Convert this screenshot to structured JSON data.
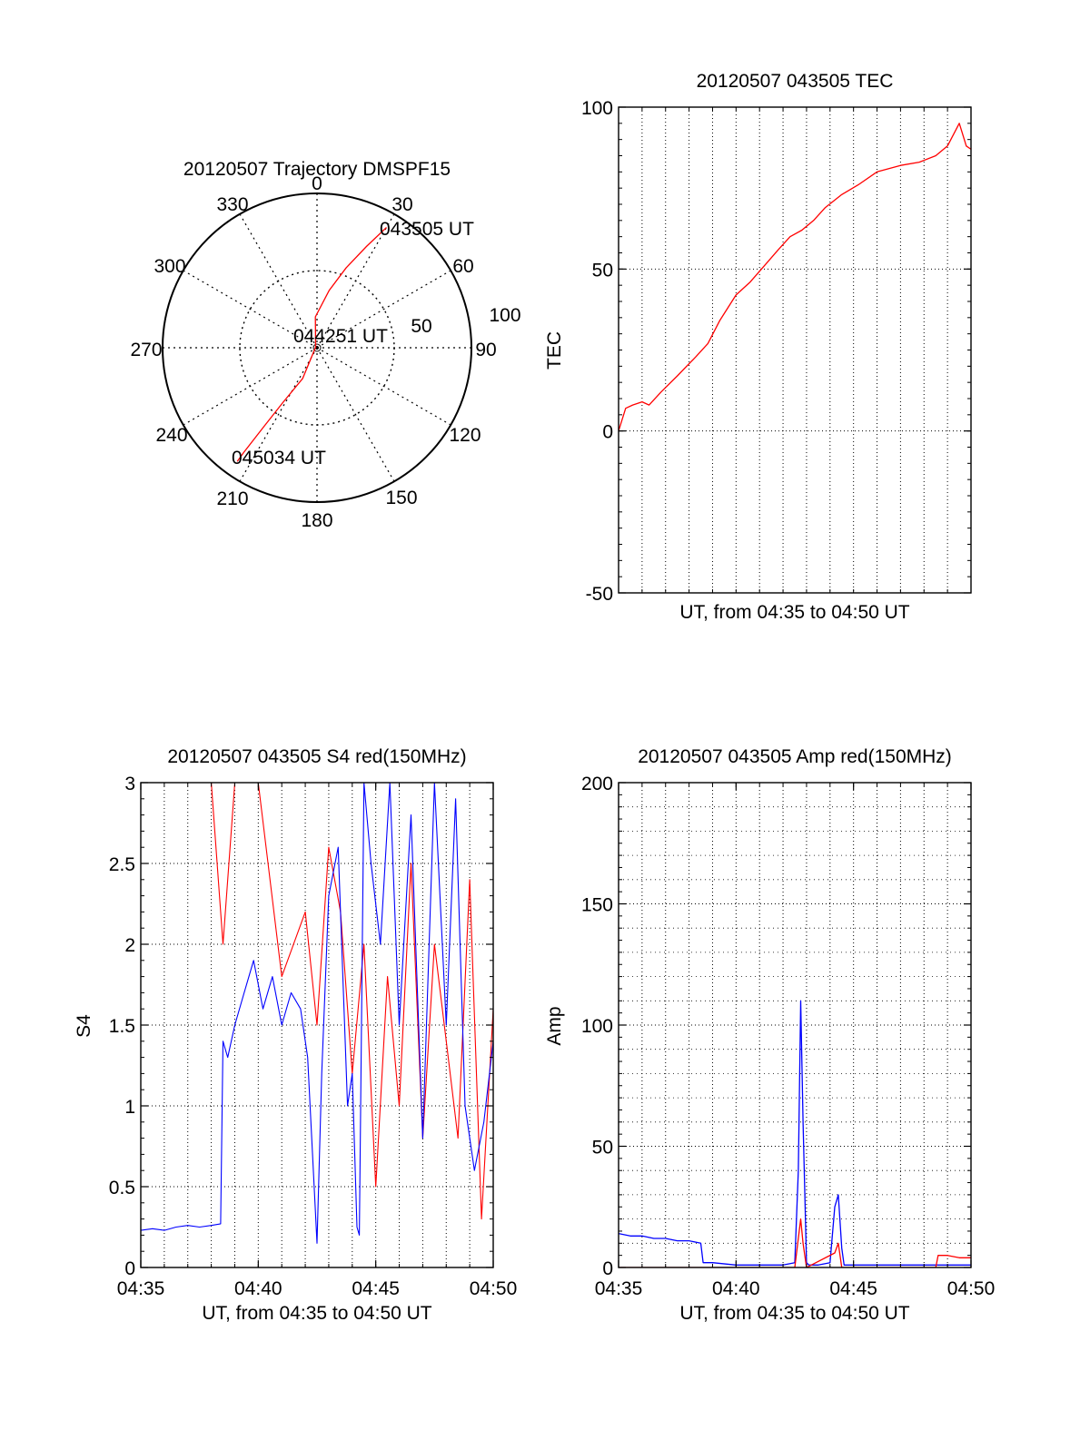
{
  "chart_data": [
    {
      "type": "polar",
      "title": "20120507 Trajectory DMSPF15",
      "azimuth_ticks": [
        "0",
        "30",
        "60",
        "90",
        "120",
        "150",
        "180",
        "210",
        "240",
        "270",
        "300",
        "330"
      ],
      "radial_ticks": [
        "50",
        "100"
      ],
      "radial_max": 100,
      "grid": true,
      "series": [
        {
          "color": "#ff0000",
          "points": [
            {
              "az": 30,
              "r": 90
            },
            {
              "az": 26,
              "r": 73
            },
            {
              "az": 20,
              "r": 55
            },
            {
              "az": 12,
              "r": 38
            },
            {
              "az": -3,
              "r": 20
            },
            {
              "az": -62,
              "r": 1
            },
            {
              "az": 205,
              "r": 22
            },
            {
              "az": 212,
              "r": 42
            },
            {
              "az": 214,
              "r": 62
            },
            {
              "az": 215,
              "r": 83
            },
            {
              "az": 215,
              "r": 90
            }
          ]
        }
      ],
      "labels": [
        {
          "text": "043505 UT",
          "az": 30,
          "r": 90
        },
        {
          "text": "044251 UT",
          "az": 0,
          "r": 1
        },
        {
          "text": "045034 UT",
          "az": 215,
          "r": 90
        }
      ]
    },
    {
      "type": "line",
      "title": "20120507 043505 TEC",
      "xlabel": "UT, from 04:35 to 04:50 UT",
      "ylabel": "TEC",
      "xlim": [
        0,
        15
      ],
      "ylim": [
        -50,
        100
      ],
      "yticks": [
        "-50",
        "0",
        "50",
        "100"
      ],
      "grid": true,
      "series": [
        {
          "color": "#ff0000",
          "x": [
            0.0,
            0.3,
            0.6,
            1.0,
            1.3,
            1.8,
            2.5,
            3.3,
            3.8,
            4.3,
            5.0,
            5.6,
            6.2,
            6.8,
            7.3,
            7.8,
            8.3,
            8.8,
            9.5,
            10.2,
            11.0,
            12.0,
            12.8,
            13.5,
            14.0,
            14.5,
            14.8,
            15.0
          ],
          "values": [
            0,
            7,
            8,
            9,
            8,
            12,
            17,
            23,
            27,
            34,
            42,
            46,
            51,
            56,
            60,
            62,
            65,
            69,
            73,
            76,
            80,
            82,
            83,
            85,
            88,
            95,
            88,
            87
          ]
        }
      ]
    },
    {
      "type": "line",
      "title": "20120507 043505 S4 red(150MHz)",
      "xlabel": "UT, from 04:35 to 04:50 UT",
      "ylabel": "S4",
      "xlim": [
        0,
        15
      ],
      "ylim": [
        0,
        3
      ],
      "xticks": [
        "04:35",
        "04:40",
        "04:45",
        "04:50"
      ],
      "yticks": [
        "0",
        "0.5",
        "1",
        "1.5",
        "2",
        "2.5",
        "3"
      ],
      "grid": true,
      "series": [
        {
          "color": "#0000ff",
          "x": [
            0.0,
            0.5,
            1.0,
            1.5,
            2.0,
            2.5,
            3.0,
            3.4,
            3.5,
            3.7,
            4.0,
            4.4,
            4.8,
            5.2,
            5.6,
            6.0,
            6.4,
            6.8,
            7.1,
            7.5,
            7.7,
            8.0,
            8.4,
            8.8,
            9.0,
            9.2,
            9.3,
            9.5,
            9.8,
            10.2,
            10.6,
            11.0,
            11.5,
            12.0,
            12.5,
            13.0,
            13.4,
            13.8,
            14.2,
            14.6,
            15.0
          ],
          "values": [
            0.23,
            0.24,
            0.23,
            0.25,
            0.26,
            0.25,
            0.26,
            0.27,
            1.4,
            1.3,
            1.5,
            1.7,
            1.9,
            1.6,
            1.8,
            1.5,
            1.7,
            1.6,
            1.3,
            0.15,
            1.2,
            2.3,
            2.6,
            1.0,
            1.2,
            0.25,
            0.2,
            3.0,
            2.5,
            2.0,
            3.0,
            1.5,
            2.8,
            0.8,
            3.0,
            1.5,
            2.9,
            1.0,
            0.6,
            0.9,
            1.4
          ]
        },
        {
          "color": "#ff0000",
          "x": [
            0.0,
            1.0,
            2.0,
            3.0,
            3.5,
            4.0,
            5.0,
            6.0,
            7.0,
            7.5,
            8.0,
            8.5,
            9.0,
            9.5,
            10.0,
            10.5,
            11.0,
            11.5,
            12.0,
            12.5,
            13.0,
            13.5,
            14.0,
            14.5,
            15.0
          ],
          "values": [
            3.0,
            3.0,
            3.0,
            3.0,
            2.0,
            3.0,
            3.0,
            1.8,
            2.2,
            1.5,
            2.6,
            2.2,
            1.2,
            2.0,
            0.5,
            1.8,
            1.0,
            2.5,
            0.8,
            2.0,
            1.4,
            0.8,
            2.4,
            0.3,
            1.6
          ]
        }
      ]
    },
    {
      "type": "line",
      "title": "20120507 043505 Amp red(150MHz)",
      "xlabel": "UT, from 04:35 to 04:50 UT",
      "ylabel": "Amp",
      "xlim": [
        0,
        15
      ],
      "ylim": [
        0,
        200
      ],
      "xticks": [
        "04:35",
        "04:40",
        "04:45",
        "04:50"
      ],
      "yticks": [
        "0",
        "50",
        "100",
        "150",
        "200"
      ],
      "grid": true,
      "series": [
        {
          "color": "#0000ff",
          "x": [
            0.0,
            0.5,
            1.0,
            1.5,
            2.0,
            2.5,
            3.0,
            3.5,
            3.6,
            4.0,
            5.0,
            6.0,
            7.0,
            7.5,
            7.65,
            7.75,
            7.85,
            8.0,
            8.1,
            8.5,
            9.0,
            9.2,
            9.35,
            9.5,
            9.6,
            10.0,
            11.0,
            12.0,
            13.0,
            14.0,
            15.0
          ],
          "values": [
            14,
            13,
            13,
            12,
            12,
            11,
            11,
            10,
            2,
            2,
            1,
            1,
            1,
            2,
            40,
            110,
            60,
            2,
            1,
            1,
            2,
            25,
            30,
            8,
            1,
            1,
            1,
            1,
            1,
            1,
            1
          ]
        },
        {
          "color": "#ff0000",
          "x": [
            0.0,
            3.5,
            7.5,
            7.75,
            7.85,
            8.0,
            9.2,
            9.35,
            9.5,
            13.5,
            13.6,
            14.0,
            14.5,
            15.0
          ],
          "values": [
            0,
            0,
            0,
            20,
            10,
            0,
            6,
            10,
            0,
            0,
            5,
            5,
            4,
            4
          ]
        }
      ]
    }
  ]
}
